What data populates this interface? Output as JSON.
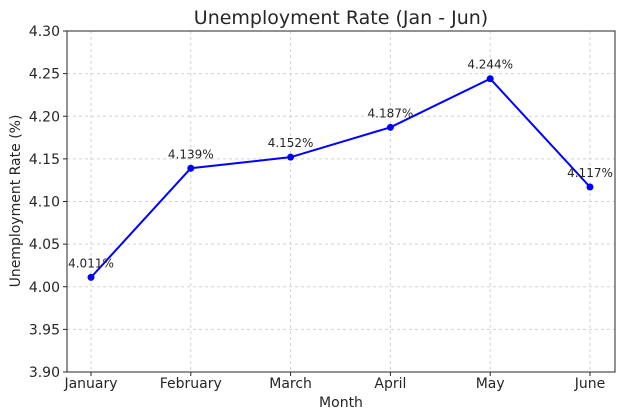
{
  "chart_data": {
    "type": "line",
    "title": "Unemployment Rate (Jan - Jun)",
    "xlabel": "Month",
    "ylabel": "Unemployment Rate (%)",
    "categories": [
      "January",
      "February",
      "March",
      "April",
      "May",
      "June"
    ],
    "series": [
      {
        "values": [
          4.011,
          4.139,
          4.152,
          4.187,
          4.244,
          4.117
        ],
        "color": "#0000ff",
        "marker": "circle"
      }
    ],
    "data_labels": [
      "4.011%",
      "4.139%",
      "4.152%",
      "4.187%",
      "4.244%",
      "4.117%"
    ],
    "ylim": [
      3.9,
      4.3
    ],
    "yticks": [
      "3.90",
      "3.95",
      "4.00",
      "4.05",
      "4.10",
      "4.15",
      "4.20",
      "4.25",
      "4.30"
    ],
    "grid": true,
    "legend": "none"
  }
}
